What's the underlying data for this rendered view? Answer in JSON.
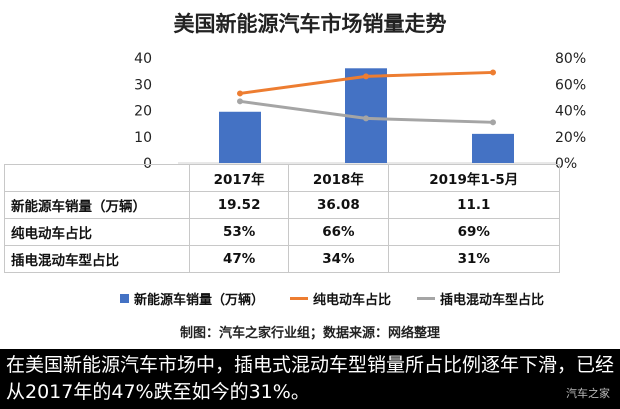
{
  "chart_data": {
    "type": "bar",
    "title": "美国新能源汽车市场销量走势",
    "categories": [
      "2017年",
      "2018年",
      "2019年1-5月"
    ],
    "series": [
      {
        "name": "新能源车销量（万辆）",
        "type": "bar",
        "axis": "left",
        "values": [
          19.52,
          36.08,
          11.1
        ],
        "color": "#4472c4"
      },
      {
        "name": "纯电动车占比",
        "type": "line",
        "axis": "right",
        "values": [
          53,
          66,
          69
        ],
        "color": "#ed7d31"
      },
      {
        "name": "插电混动车型占比",
        "type": "line",
        "axis": "right",
        "values": [
          47,
          34,
          31
        ],
        "color": "#a5a5a5"
      }
    ],
    "y_left": {
      "min": 0,
      "max": 40,
      "ticks": [
        "0",
        "10",
        "20",
        "30",
        "40"
      ]
    },
    "y_right": {
      "min": 0,
      "max": 80,
      "ticks": [
        "0%",
        "20%",
        "40%",
        "60%",
        "80%"
      ]
    },
    "grid": false,
    "legend_position": "bottom"
  },
  "table": {
    "rows": [
      {
        "label": "新能源车销量（万辆）",
        "cells": [
          "19.52",
          "36.08",
          "11.1"
        ]
      },
      {
        "label": "纯电动车占比",
        "cells": [
          "53%",
          "66%",
          "69%"
        ]
      },
      {
        "label": "插电混动车型占比",
        "cells": [
          "47%",
          "34%",
          "31%"
        ]
      }
    ]
  },
  "source_note": "制图：汽车之家行业组；数据来源：网络整理",
  "caption": "在美国新能源汽车市场中，插电式混动车型销量所占比例逐年下滑，已经从2017年的47%跌至如今的31%。",
  "watermark": "汽车之家"
}
